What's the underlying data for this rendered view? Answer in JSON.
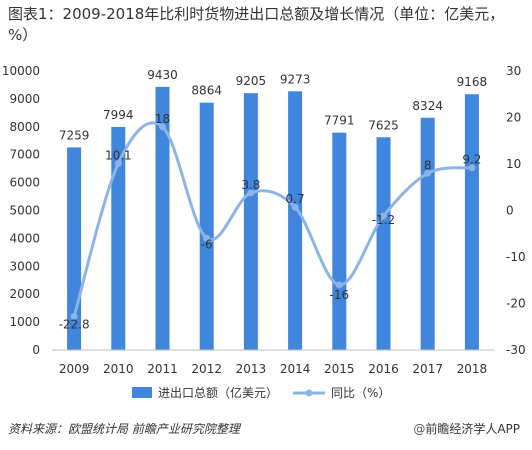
{
  "chart_data": {
    "type": "bar",
    "title": "图表1：2009-2018年比利时货物进出口总额及增长情况（单位：亿美元，%）",
    "categories": [
      "2009",
      "2010",
      "2011",
      "2012",
      "2013",
      "2014",
      "2015",
      "2016",
      "2017",
      "2018"
    ],
    "series": [
      {
        "name": "进出口总额（亿美元）",
        "type": "bar",
        "axis": "left",
        "color": "#3f86dc",
        "values": [
          7259,
          7994,
          9430,
          8864,
          9205,
          9273,
          7791,
          7625,
          8324,
          9168
        ]
      },
      {
        "name": "同比（%）",
        "type": "line",
        "axis": "right",
        "color": "#8db4e6",
        "smooth": true,
        "markers": true,
        "values": [
          -22.8,
          10.1,
          18,
          -6,
          3.8,
          0.7,
          -16,
          -1.2,
          8,
          9.2
        ]
      }
    ],
    "ylim_left": [
      0,
      10000
    ],
    "yticks_left": [
      "0",
      "1000",
      "2000",
      "3000",
      "4000",
      "5000",
      "6000",
      "7000",
      "8000",
      "9000",
      "10000"
    ],
    "ylim_right": [
      -30,
      30
    ],
    "yticks_right": [
      "-30",
      "-20",
      "-10",
      "0",
      "10",
      "20",
      "30"
    ],
    "grid": false,
    "legend": "bottom"
  },
  "footer": {
    "source": "资料来源：欧盟统计局  前瞻产业研究院整理",
    "brand": "前瞻经济学人APP",
    "brand_icon": "@"
  }
}
